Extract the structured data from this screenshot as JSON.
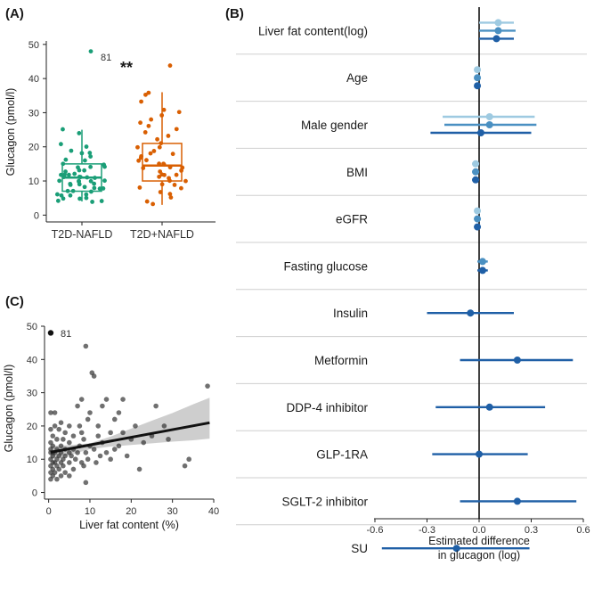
{
  "figure": {
    "panel_a_label": "(A)",
    "panel_b_label": "(B)",
    "panel_c_label": "(C)"
  },
  "chart_data": [
    {
      "id": "A",
      "type": "box",
      "ylabel": "Glucagon (pmol/l)",
      "yticks": [
        0,
        10,
        20,
        30,
        40,
        50
      ],
      "ylim": [
        -2,
        51
      ],
      "categories": [
        "T2D-NAFLD",
        "T2D+NAFLD"
      ],
      "colors": [
        "#1a9e77",
        "#d95f02"
      ],
      "outlier_label": "81",
      "significance": "**",
      "boxes": [
        {
          "name": "T2D-NAFLD",
          "q1": 7,
          "median": 11,
          "q3": 15,
          "whisker_low": 4,
          "whisker_high": 25,
          "points": [
            48,
            25,
            24,
            21,
            20,
            19,
            18,
            18,
            17,
            16,
            16,
            15,
            15,
            14,
            14,
            14,
            13,
            13,
            13,
            12,
            12,
            12,
            12,
            11,
            11,
            11,
            11,
            11,
            10,
            10,
            10,
            10,
            10,
            9,
            9,
            9,
            9,
            8,
            8,
            8,
            8,
            7,
            7,
            7,
            6,
            6,
            6,
            6,
            5,
            5,
            5,
            4,
            4,
            4
          ]
        },
        {
          "name": "T2D+NAFLD",
          "q1": 10,
          "median": 14.5,
          "q3": 21,
          "whisker_low": 3,
          "whisker_high": 36,
          "points": [
            44,
            36,
            35,
            33,
            31,
            30,
            29,
            28,
            27,
            26,
            25,
            24,
            23,
            22,
            21,
            20,
            20,
            19,
            18,
            18,
            17,
            17,
            16,
            16,
            15,
            15,
            15,
            14,
            14,
            14,
            13,
            13,
            12,
            12,
            12,
            11,
            11,
            10,
            10,
            9,
            9,
            8,
            8,
            7,
            6,
            5,
            4,
            3
          ]
        }
      ]
    },
    {
      "id": "B",
      "type": "forest",
      "xlabel": "Estimated difference\nin glucagon (log)",
      "xticks": [
        -0.6,
        -0.3,
        0.0,
        0.3,
        0.6
      ],
      "xtick_labels": [
        "-0.6",
        "-0.3",
        "0.0",
        "0.3",
        "0.6"
      ],
      "xlim": [
        -0.62,
        0.62
      ],
      "shades": [
        "#9ecae1",
        "#4a90c2",
        "#1f5fa6"
      ],
      "rows": [
        {
          "label": "Liver fat content(log)",
          "estimates": [
            {
              "est": 0.11,
              "lo": 0.0,
              "hi": 0.2
            },
            {
              "est": 0.11,
              "lo": 0.0,
              "hi": 0.21
            },
            {
              "est": 0.1,
              "lo": 0.0,
              "hi": 0.2
            }
          ]
        },
        {
          "label": "Age",
          "estimates": [
            {
              "est": -0.01,
              "lo": -0.015,
              "hi": 0.0
            },
            {
              "est": -0.01,
              "lo": -0.015,
              "hi": 0.0
            },
            {
              "est": -0.01,
              "lo": -0.015,
              "hi": 0.0
            }
          ]
        },
        {
          "label": "Male gender",
          "estimates": [
            {
              "est": 0.06,
              "lo": -0.21,
              "hi": 0.32
            },
            {
              "est": 0.06,
              "lo": -0.2,
              "hi": 0.33
            },
            {
              "est": 0.01,
              "lo": -0.28,
              "hi": 0.3
            }
          ]
        },
        {
          "label": "BMI",
          "estimates": [
            {
              "est": -0.02,
              "lo": -0.04,
              "hi": 0.0
            },
            {
              "est": -0.02,
              "lo": -0.04,
              "hi": 0.0
            },
            {
              "est": -0.02,
              "lo": -0.04,
              "hi": 0.0
            }
          ]
        },
        {
          "label": "eGFR",
          "estimates": [
            {
              "est": -0.01,
              "lo": -0.015,
              "hi": 0.0
            },
            {
              "est": -0.01,
              "lo": -0.015,
              "hi": 0.0
            },
            {
              "est": -0.01,
              "lo": -0.015,
              "hi": 0.0
            }
          ]
        },
        {
          "label": "Fasting glucose",
          "estimates": [
            {
              "est": 0.02,
              "lo": -0.01,
              "hi": 0.05
            },
            {
              "est": 0.02,
              "lo": -0.01,
              "hi": 0.05
            }
          ]
        },
        {
          "label": "Insulin",
          "estimates": [
            {
              "est": -0.05,
              "lo": -0.3,
              "hi": 0.2
            }
          ]
        },
        {
          "label": "Metformin",
          "estimates": [
            {
              "est": 0.22,
              "lo": -0.11,
              "hi": 0.54
            }
          ]
        },
        {
          "label": "DDP-4 inhibitor",
          "estimates": [
            {
              "est": 0.06,
              "lo": -0.25,
              "hi": 0.38
            }
          ]
        },
        {
          "label": "GLP-1RA",
          "estimates": [
            {
              "est": 0.0,
              "lo": -0.27,
              "hi": 0.28
            }
          ]
        },
        {
          "label": "SGLT-2 inhibitor",
          "estimates": [
            {
              "est": 0.22,
              "lo": -0.11,
              "hi": 0.56
            }
          ]
        },
        {
          "label": "SU",
          "estimates": [
            {
              "est": -0.13,
              "lo": -0.56,
              "hi": 0.29
            }
          ]
        }
      ]
    },
    {
      "id": "C",
      "type": "scatter",
      "xlabel": "Liver fat content (%)",
      "ylabel": "Glucagon (pmol/l)",
      "xticks": [
        0,
        10,
        20,
        30,
        40
      ],
      "yticks": [
        0,
        10,
        20,
        30,
        40,
        50
      ],
      "xlim": [
        -1,
        40
      ],
      "ylim": [
        -2,
        50
      ],
      "point_color": "#333333",
      "line_color": "#111111",
      "band_color": "#bdbdbd",
      "outlier": {
        "x": 0.5,
        "y": 48,
        "label": "81"
      },
      "fit": {
        "intercept": 12,
        "slope": 0.23,
        "x_from": 0.5,
        "x_to": 39
      },
      "band": {
        "x": [
          0.5,
          5,
          10,
          15,
          20,
          25,
          30,
          35,
          39
        ],
        "lo": [
          10,
          11.3,
          13,
          13.8,
          14.3,
          14.8,
          15.3,
          15.7,
          16.2
        ],
        "hi": [
          14,
          14.2,
          14.8,
          16.8,
          19.2,
          21.6,
          23.9,
          26.5,
          28.5
        ]
      },
      "points": [
        {
          "x": 0.5,
          "y": 4
        },
        {
          "x": 0.5,
          "y": 6
        },
        {
          "x": 0.5,
          "y": 8
        },
        {
          "x": 0.5,
          "y": 10
        },
        {
          "x": 0.5,
          "y": 12
        },
        {
          "x": 0.5,
          "y": 13
        },
        {
          "x": 0.5,
          "y": 15
        },
        {
          "x": 0.5,
          "y": 19
        },
        {
          "x": 0.5,
          "y": 24
        },
        {
          "x": 1,
          "y": 5
        },
        {
          "x": 1,
          "y": 7
        },
        {
          "x": 1,
          "y": 9
        },
        {
          "x": 1,
          "y": 11
        },
        {
          "x": 1,
          "y": 12
        },
        {
          "x": 1,
          "y": 14
        },
        {
          "x": 1,
          "y": 17
        },
        {
          "x": 1.5,
          "y": 6
        },
        {
          "x": 1.5,
          "y": 9
        },
        {
          "x": 1.5,
          "y": 12
        },
        {
          "x": 1.5,
          "y": 20
        },
        {
          "x": 1.5,
          "y": 24
        },
        {
          "x": 2,
          "y": 4
        },
        {
          "x": 2,
          "y": 8
        },
        {
          "x": 2,
          "y": 10
        },
        {
          "x": 2,
          "y": 13
        },
        {
          "x": 2,
          "y": 16
        },
        {
          "x": 2.5,
          "y": 7
        },
        {
          "x": 2.5,
          "y": 11
        },
        {
          "x": 2.5,
          "y": 19
        },
        {
          "x": 3,
          "y": 5
        },
        {
          "x": 3,
          "y": 9
        },
        {
          "x": 3,
          "y": 12
        },
        {
          "x": 3,
          "y": 14
        },
        {
          "x": 3,
          "y": 21
        },
        {
          "x": 3.5,
          "y": 8
        },
        {
          "x": 3.5,
          "y": 10
        },
        {
          "x": 3.5,
          "y": 16
        },
        {
          "x": 4,
          "y": 6
        },
        {
          "x": 4,
          "y": 11
        },
        {
          "x": 4,
          "y": 13
        },
        {
          "x": 4,
          "y": 18
        },
        {
          "x": 5,
          "y": 5
        },
        {
          "x": 5,
          "y": 9
        },
        {
          "x": 5,
          "y": 12
        },
        {
          "x": 5,
          "y": 15
        },
        {
          "x": 5,
          "y": 20
        },
        {
          "x": 5.5,
          "y": 11
        },
        {
          "x": 6,
          "y": 7
        },
        {
          "x": 6,
          "y": 13
        },
        {
          "x": 6,
          "y": 17
        },
        {
          "x": 6.5,
          "y": 10
        },
        {
          "x": 7,
          "y": 12
        },
        {
          "x": 7,
          "y": 26
        },
        {
          "x": 7.5,
          "y": 14
        },
        {
          "x": 7.5,
          "y": 20
        },
        {
          "x": 8,
          "y": 9
        },
        {
          "x": 8,
          "y": 18
        },
        {
          "x": 8,
          "y": 28
        },
        {
          "x": 8.5,
          "y": 8
        },
        {
          "x": 8.5,
          "y": 16
        },
        {
          "x": 9,
          "y": 3
        },
        {
          "x": 9,
          "y": 12
        },
        {
          "x": 9,
          "y": 44
        },
        {
          "x": 9.5,
          "y": 10
        },
        {
          "x": 9.5,
          "y": 22
        },
        {
          "x": 10,
          "y": 14
        },
        {
          "x": 10,
          "y": 24
        },
        {
          "x": 10.5,
          "y": 36
        },
        {
          "x": 11,
          "y": 13
        },
        {
          "x": 11,
          "y": 35
        },
        {
          "x": 11.5,
          "y": 9
        },
        {
          "x": 12,
          "y": 17
        },
        {
          "x": 12,
          "y": 20
        },
        {
          "x": 12.5,
          "y": 11
        },
        {
          "x": 13,
          "y": 15
        },
        {
          "x": 13,
          "y": 26
        },
        {
          "x": 14,
          "y": 12
        },
        {
          "x": 14,
          "y": 28
        },
        {
          "x": 15,
          "y": 18
        },
        {
          "x": 15,
          "y": 10
        },
        {
          "x": 16,
          "y": 22
        },
        {
          "x": 16,
          "y": 13
        },
        {
          "x": 17,
          "y": 14
        },
        {
          "x": 17,
          "y": 24
        },
        {
          "x": 18,
          "y": 18
        },
        {
          "x": 18,
          "y": 28
        },
        {
          "x": 19,
          "y": 11
        },
        {
          "x": 20,
          "y": 16
        },
        {
          "x": 21,
          "y": 20
        },
        {
          "x": 22,
          "y": 7
        },
        {
          "x": 23,
          "y": 15
        },
        {
          "x": 25,
          "y": 17
        },
        {
          "x": 26,
          "y": 26
        },
        {
          "x": 28,
          "y": 20
        },
        {
          "x": 29,
          "y": 16
        },
        {
          "x": 33,
          "y": 8
        },
        {
          "x": 34,
          "y": 10
        },
        {
          "x": 38.5,
          "y": 32
        }
      ]
    }
  ]
}
